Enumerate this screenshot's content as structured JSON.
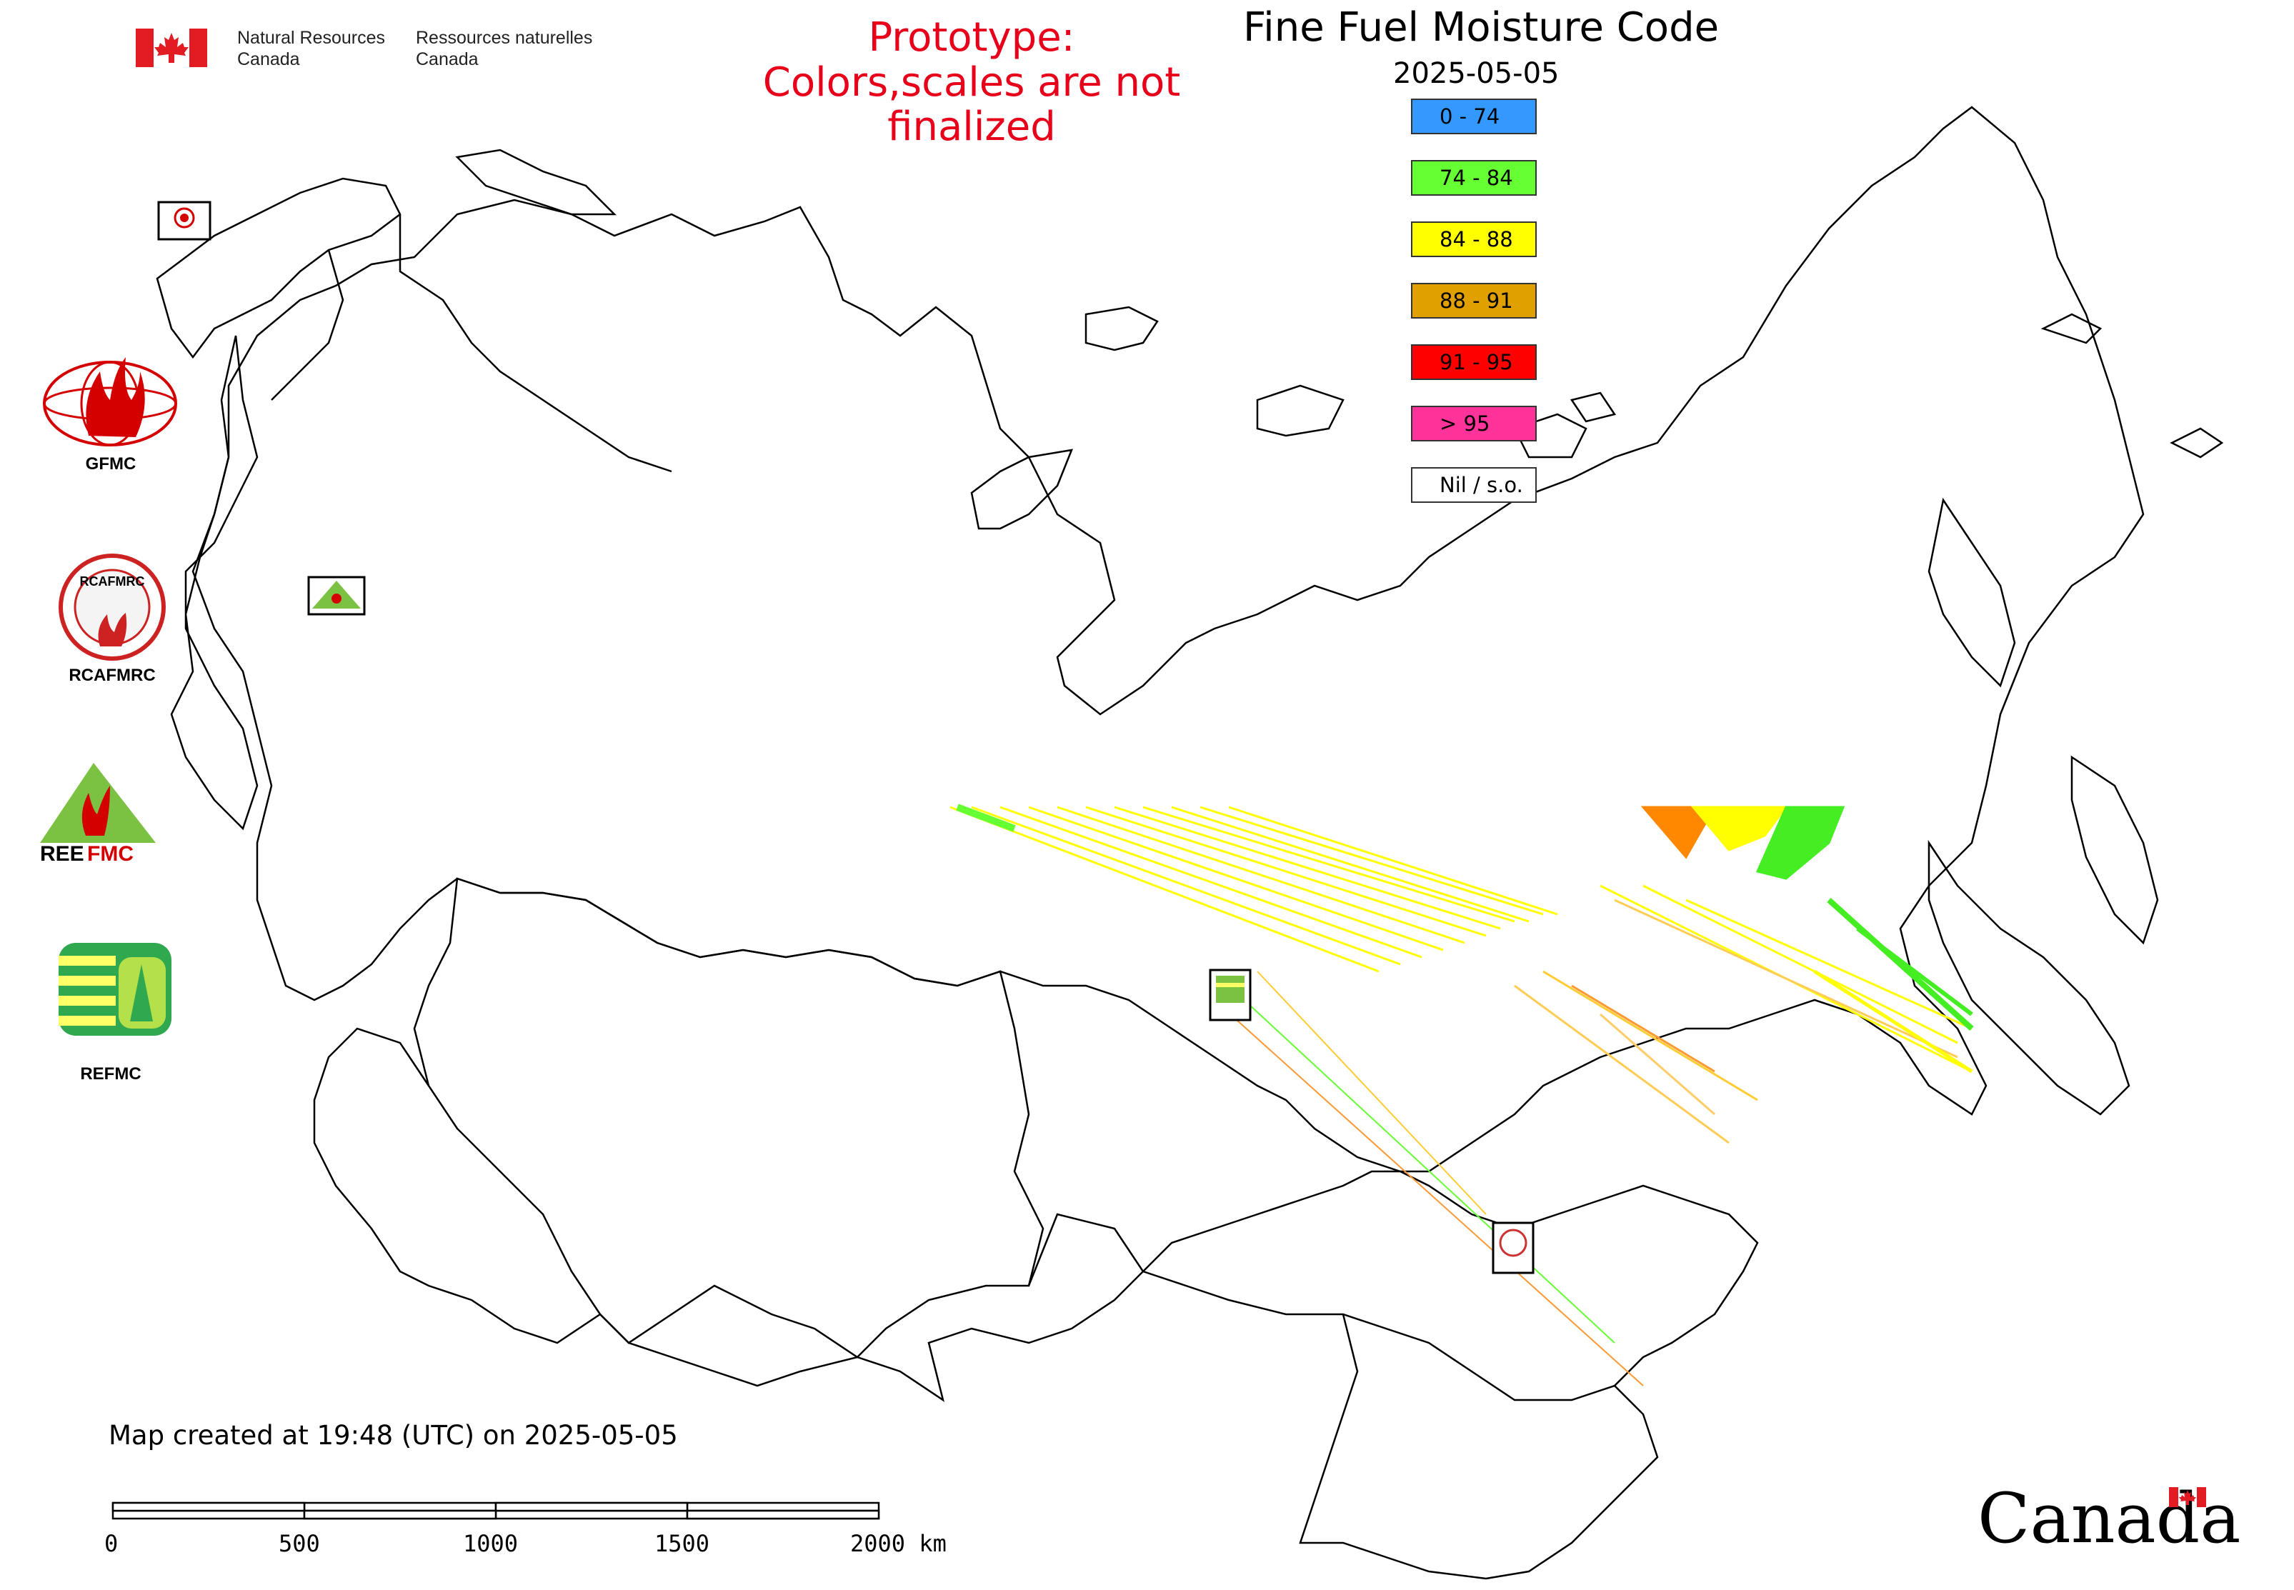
{
  "header": {
    "title": "Fine Fuel Moisture Code",
    "date": "2025-05-05",
    "prototype_line1": "Prototype:",
    "prototype_line2": "Colors,scales are not finalized"
  },
  "branding": {
    "nrcan_en_line1": "Natural Resources",
    "nrcan_en_line2": "Canada",
    "nrcan_fr_line1": "Ressources naturelles",
    "nrcan_fr_line2": "Canada",
    "wordmark": "Canada"
  },
  "legend": [
    {
      "label": "0 - 74",
      "color": "#3399ff"
    },
    {
      "label": "74 - 84",
      "color": "#66ff33"
    },
    {
      "label": "84 - 88",
      "color": "#ffff00"
    },
    {
      "label": "88 - 91",
      "color": "#e0a000"
    },
    {
      "label": "91 - 95",
      "color": "#ff0000"
    },
    {
      "label": "> 95",
      "color": "#ff3399"
    },
    {
      "label": "Nil / s.o.",
      "color": "#ffffff"
    }
  ],
  "partner_logos": [
    {
      "caption": "GFMC",
      "icon": "gfmc-logo"
    },
    {
      "caption": "RCAFMRC",
      "icon": "rcafmrc-logo"
    },
    {
      "caption": "",
      "icon": "reefmc-logo"
    },
    {
      "caption": "REFMC",
      "icon": "refmc-logo"
    }
  ],
  "footer": {
    "created": "Map created at 19:48 (UTC) on 2025-05-05",
    "scale_labels": [
      "0",
      "500",
      "1000",
      "1500",
      "2000 km"
    ]
  }
}
